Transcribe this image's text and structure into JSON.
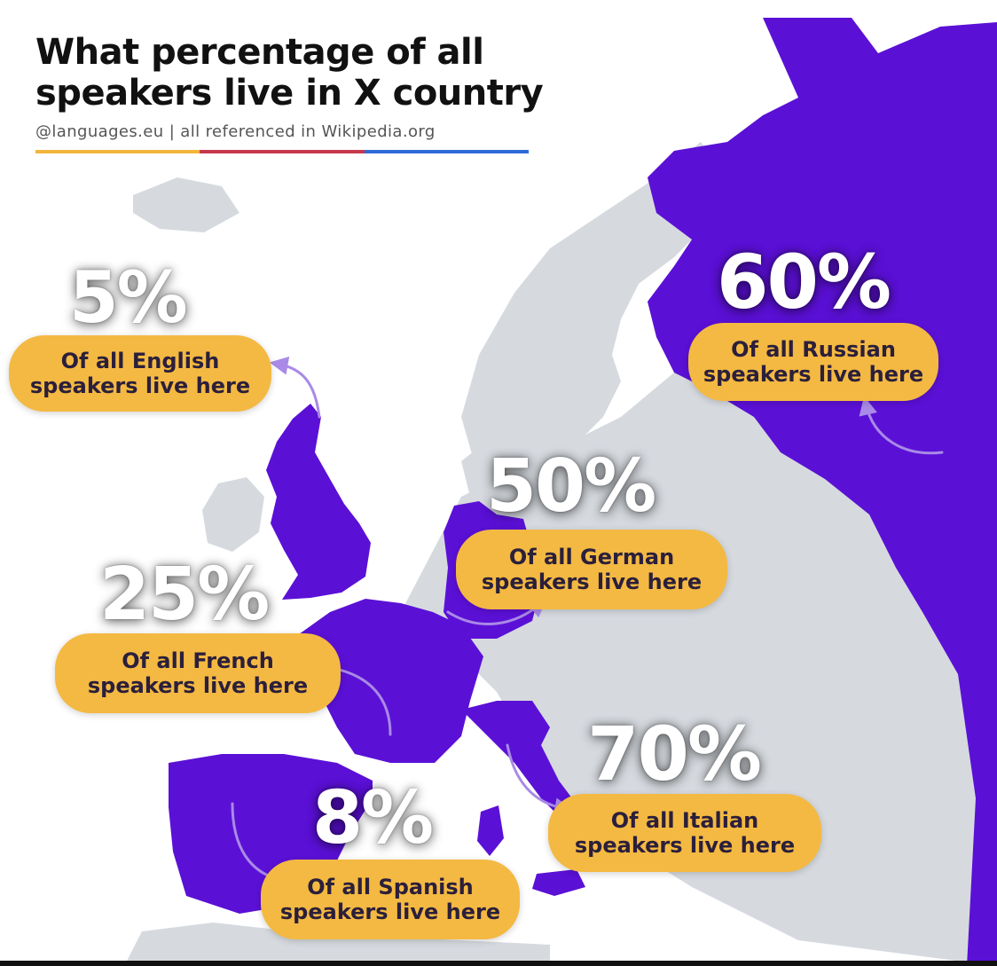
{
  "header": {
    "title_line1": "What percentage of all",
    "title_line2": "speakers live in X country",
    "subtitle": "@languages.eu | all referenced in Wikipedia.org"
  },
  "colors": {
    "highlight": "#5b10d6",
    "land": "#d6dadf",
    "sea": "#ffffff",
    "pill": "#f4b942",
    "arrow": "#a98ae6",
    "rule": [
      "#f2b63c",
      "#c6394c",
      "#2e6bd8"
    ]
  },
  "callouts": [
    {
      "id": "english",
      "percent": "5%",
      "line1": "Of all English",
      "line2": "speakers live here"
    },
    {
      "id": "russian",
      "percent": "60%",
      "line1": "Of all Russian",
      "line2": "speakers live here"
    },
    {
      "id": "german",
      "percent": "50%",
      "line1": "Of all German",
      "line2": "speakers live here"
    },
    {
      "id": "french",
      "percent": "25%",
      "line1": "Of all French",
      "line2": "speakers live here"
    },
    {
      "id": "italian",
      "percent": "70%",
      "line1": "Of all Italian",
      "line2": "speakers live here"
    },
    {
      "id": "spanish",
      "percent": "8%",
      "line1": "Of all Spanish",
      "line2": "speakers live here"
    }
  ]
}
